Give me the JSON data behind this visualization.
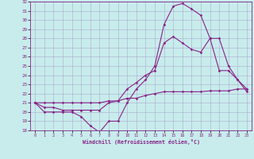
{
  "xlabel": "Windchill (Refroidissement éolien,°C)",
  "bg_color": "#c8ecec",
  "line_color": "#882288",
  "grid_color": "#aaaacc",
  "x_hours": [
    0,
    1,
    2,
    3,
    4,
    5,
    6,
    7,
    8,
    9,
    10,
    11,
    12,
    13,
    14,
    15,
    16,
    17,
    18,
    19,
    20,
    21,
    22,
    23
  ],
  "curve1": [
    21.0,
    20.0,
    20.0,
    20.0,
    20.0,
    19.5,
    18.5,
    17.8,
    19.0,
    19.0,
    21.0,
    22.5,
    23.5,
    25.0,
    29.5,
    31.5,
    31.8,
    31.2,
    30.5,
    28.0,
    24.5,
    24.5,
    23.5,
    22.2
  ],
  "curve2": [
    21.0,
    20.5,
    20.5,
    20.2,
    20.2,
    20.2,
    20.2,
    20.2,
    21.0,
    21.2,
    22.5,
    23.2,
    24.0,
    24.5,
    27.5,
    28.2,
    27.5,
    26.8,
    26.5,
    28.0,
    28.0,
    25.0,
    23.5,
    22.5
  ],
  "curve3": [
    21.0,
    21.0,
    21.0,
    21.0,
    21.0,
    21.0,
    21.0,
    21.0,
    21.2,
    21.2,
    21.5,
    21.5,
    21.8,
    22.0,
    22.2,
    22.2,
    22.2,
    22.2,
    22.2,
    22.3,
    22.3,
    22.3,
    22.5,
    22.5
  ],
  "ylim": [
    18,
    32
  ],
  "xlim": [
    -0.5,
    23.5
  ],
  "yticks": [
    18,
    19,
    20,
    21,
    22,
    23,
    24,
    25,
    26,
    27,
    28,
    29,
    30,
    31,
    32
  ],
  "xticks": [
    0,
    1,
    2,
    3,
    4,
    5,
    6,
    7,
    8,
    9,
    10,
    11,
    12,
    13,
    14,
    15,
    16,
    17,
    18,
    19,
    20,
    21,
    22,
    23
  ]
}
